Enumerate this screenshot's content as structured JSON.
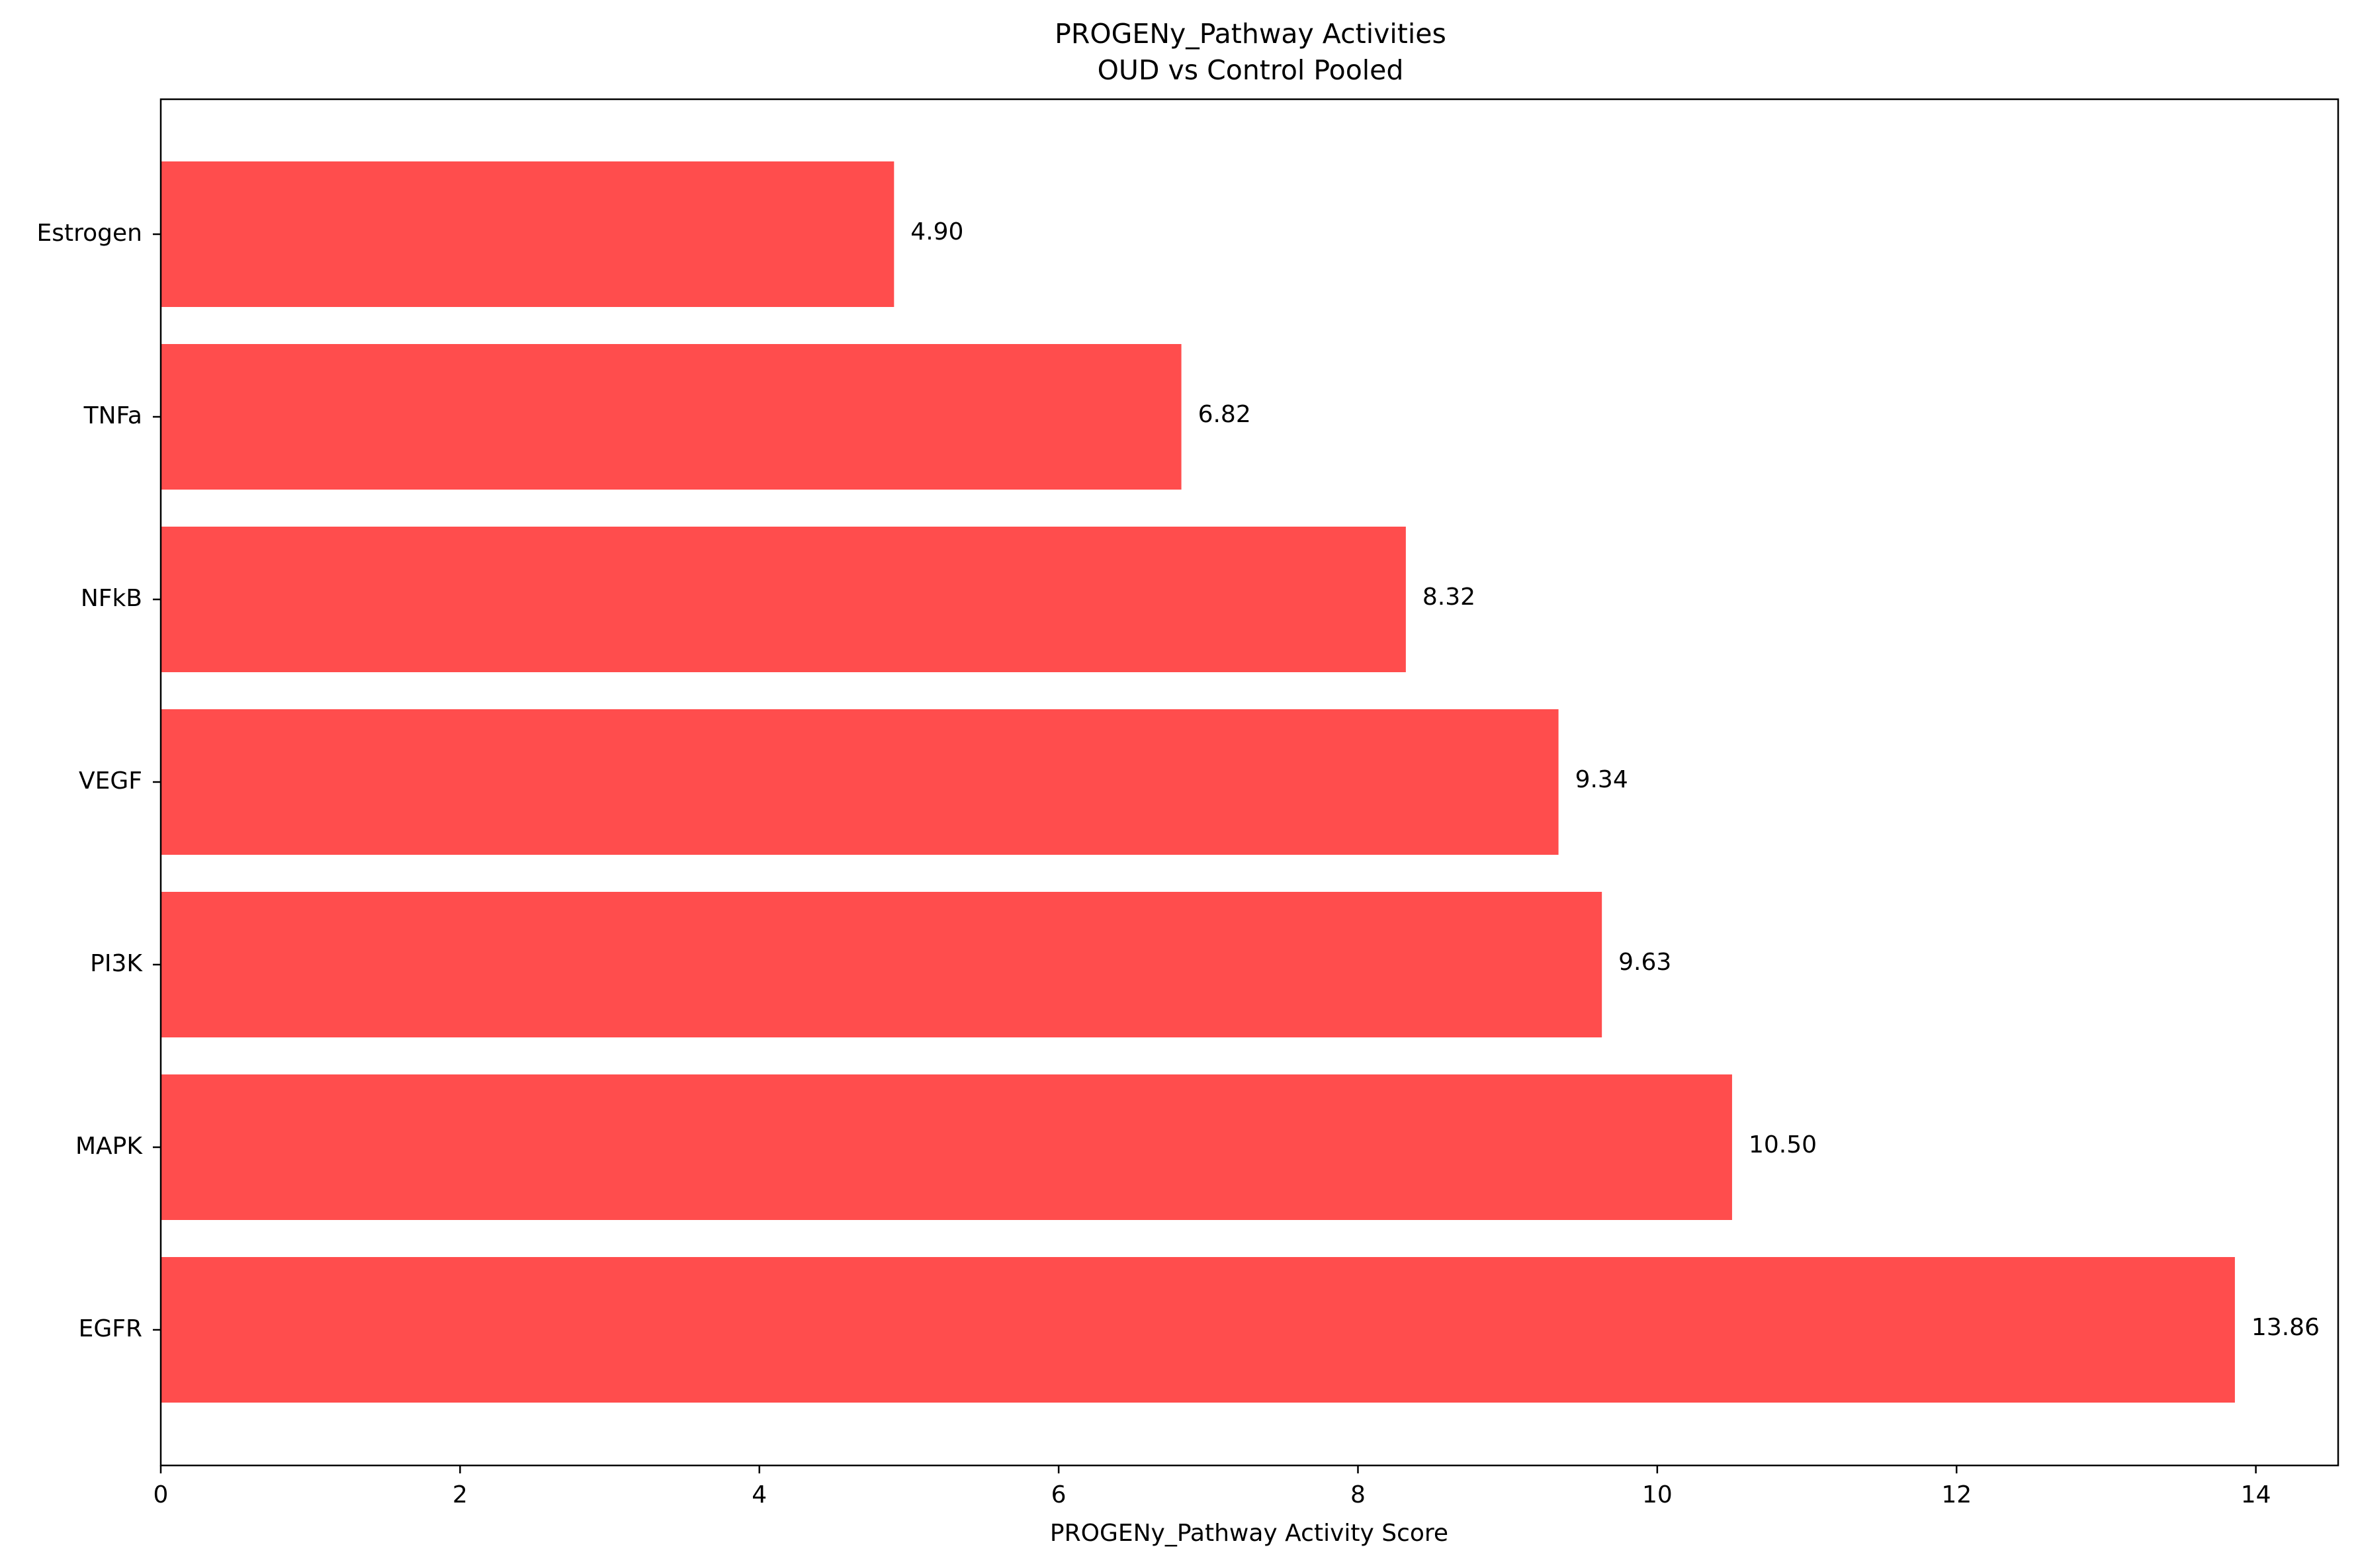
{
  "chart_data": {
    "type": "bar",
    "orientation": "horizontal",
    "title": "PROGENy_Pathway Activities",
    "subtitle": "OUD vs Control Pooled",
    "xlabel": "PROGENy_Pathway Activity Score",
    "ylabel": "",
    "categories": [
      "EGFR",
      "MAPK",
      "PI3K",
      "VEGF",
      "NFkB",
      "TNFa",
      "Estrogen"
    ],
    "values": [
      13.86,
      10.5,
      9.63,
      9.34,
      8.32,
      6.82,
      4.9
    ],
    "value_labels": [
      "13.86",
      "10.50",
      "9.63",
      "9.34",
      "8.32",
      "6.82",
      "4.90"
    ],
    "xlim": [
      0,
      14.55
    ],
    "xticks": [
      0,
      2,
      4,
      6,
      8,
      10,
      12,
      14
    ],
    "xtick_labels": [
      "0",
      "2",
      "4",
      "6",
      "8",
      "10",
      "12",
      "14"
    ],
    "grid": false,
    "legend": "none",
    "bar_color": "#ff4d4d"
  }
}
